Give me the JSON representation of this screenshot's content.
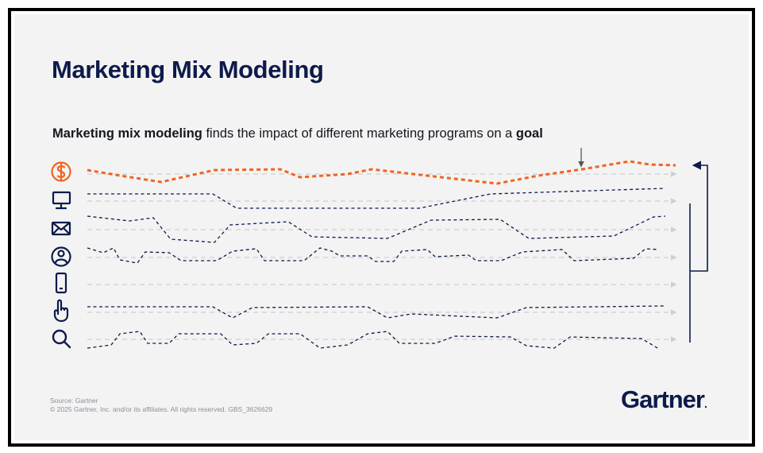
{
  "title": "Marketing Mix Modeling",
  "subtitle": {
    "bold_lead": "Marketing mix modeling",
    "middle": " finds the impact of different marketing programs on a ",
    "bold_tail": "goal"
  },
  "footer": {
    "source": "Source: Gartner",
    "copyright": "© 2025 Gartner, Inc. and/or its affiliates. All rights reserved. GBS_3626629"
  },
  "logo": {
    "text": "Gartner",
    "dot": "."
  },
  "colors": {
    "navy": "#0d1a4b",
    "goal_orange": "#f2621e",
    "baseline_gray": "#cfcfcf",
    "background": "#f3f3f3"
  },
  "channels": [
    {
      "name": "revenue",
      "icon": "dollar-circle-icon"
    },
    {
      "name": "tv",
      "icon": "monitor-icon"
    },
    {
      "name": "email",
      "icon": "envelope-icon"
    },
    {
      "name": "social",
      "icon": "person-circle-icon"
    },
    {
      "name": "mobile",
      "icon": "smartphone-icon"
    },
    {
      "name": "digital-ads",
      "icon": "pointer-finger-icon"
    },
    {
      "name": "search",
      "icon": "magnifier-icon"
    }
  ]
}
